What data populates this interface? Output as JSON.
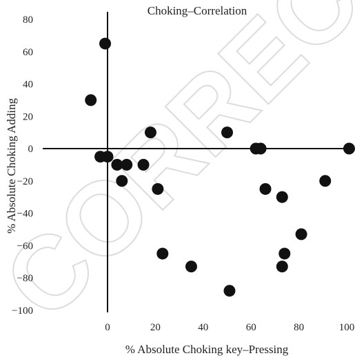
{
  "chart_data": {
    "type": "scatter",
    "title": "Choking–Correlation",
    "xlabel": "% Absolute Choking key–Pressing",
    "ylabel": "% Absolute Choking Adding",
    "xlim": [
      -10,
      100
    ],
    "ylim": [
      -100,
      80
    ],
    "x_ticks": [
      "0",
      "20",
      "40",
      "60",
      "80",
      "100"
    ],
    "y_ticks": [
      "80",
      "60",
      "40",
      "20",
      "0",
      "−20",
      "−40",
      "−60",
      "−80",
      "−100"
    ],
    "grid": false,
    "watermark": "CORRECTED",
    "points": [
      {
        "x": -7,
        "y": 30
      },
      {
        "x": -1,
        "y": 65
      },
      {
        "x": -3,
        "y": -5
      },
      {
        "x": 0,
        "y": -5
      },
      {
        "x": 4,
        "y": -10
      },
      {
        "x": 6,
        "y": -20
      },
      {
        "x": 8,
        "y": -10
      },
      {
        "x": 15,
        "y": -10
      },
      {
        "x": 18,
        "y": 10
      },
      {
        "x": 21,
        "y": -25
      },
      {
        "x": 23,
        "y": -65
      },
      {
        "x": 35,
        "y": -73
      },
      {
        "x": 50,
        "y": 10
      },
      {
        "x": 51,
        "y": -88
      },
      {
        "x": 62,
        "y": 0
      },
      {
        "x": 64,
        "y": 0
      },
      {
        "x": 66,
        "y": -25
      },
      {
        "x": 73,
        "y": -30
      },
      {
        "x": 74,
        "y": -65
      },
      {
        "x": 73,
        "y": -73
      },
      {
        "x": 81,
        "y": -53
      },
      {
        "x": 91,
        "y": -20
      },
      {
        "x": 101,
        "y": 0
      }
    ]
  }
}
